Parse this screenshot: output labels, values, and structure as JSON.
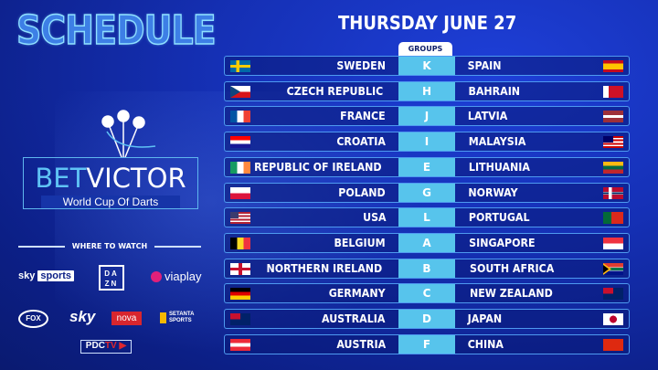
{
  "header": {
    "title": "SCHEDULE",
    "date": "THURSDAY JUNE 27"
  },
  "logo": {
    "brand_a": "BET",
    "brand_b": "VICTOR",
    "subtitle": "World Cup Of Darts"
  },
  "broadcasters": {
    "heading": "WHERE TO WATCH",
    "sky_a": "sky",
    "sky_b": "sports",
    "dazn_a": "DA",
    "dazn_b": "ZN",
    "viaplay": "viaplay",
    "fox": "FOX",
    "sky": "sky",
    "nova": "nova",
    "setanta_a": "SETANTA",
    "setanta_b": "SPORTS",
    "pdc_a": "PDC",
    "pdc_b": "TV"
  },
  "groups_label": "GROUPS",
  "matches": [
    {
      "home": "SWEDEN",
      "home_flag": "flag-sweden",
      "group": "K",
      "away": "SPAIN",
      "away_flag": "flag-spain"
    },
    {
      "home": "CZECH REPUBLIC",
      "home_flag": "flag-czech",
      "group": "H",
      "away": "BAHRAIN",
      "away_flag": "flag-bahrain"
    },
    {
      "home": "FRANCE",
      "home_flag": "flag-france",
      "group": "J",
      "away": "LATVIA",
      "away_flag": "flag-latvia"
    },
    {
      "home": "CROATIA",
      "home_flag": "flag-croatia",
      "group": "I",
      "away": "MALAYSIA",
      "away_flag": "flag-malaysia"
    },
    {
      "home": "REPUBLIC OF IRELAND",
      "home_flag": "flag-ireland",
      "group": "E",
      "away": "LITHUANIA",
      "away_flag": "flag-lithuania"
    },
    {
      "home": "POLAND",
      "home_flag": "flag-poland",
      "group": "G",
      "away": "NORWAY",
      "away_flag": "flag-norway"
    },
    {
      "home": "USA",
      "home_flag": "flag-usa",
      "group": "L",
      "away": "PORTUGAL",
      "away_flag": "flag-portugal"
    },
    {
      "home": "BELGIUM",
      "home_flag": "flag-belgium",
      "group": "A",
      "away": "SINGAPORE",
      "away_flag": "flag-singapore"
    },
    {
      "home": "NORTHERN IRELAND",
      "home_flag": "flag-northern-ireland",
      "group": "B",
      "away": "SOUTH AFRICA",
      "away_flag": "flag-south-africa"
    },
    {
      "home": "GERMANY",
      "home_flag": "flag-germany",
      "group": "C",
      "away": "NEW ZEALAND",
      "away_flag": "flag-new-zealand"
    },
    {
      "home": "AUSTRALIA",
      "home_flag": "flag-australia",
      "group": "D",
      "away": "JAPAN",
      "away_flag": "flag-japan"
    },
    {
      "home": "AUSTRIA",
      "home_flag": "flag-austria",
      "group": "F",
      "away": "CHINA",
      "away_flag": "flag-china"
    }
  ]
}
